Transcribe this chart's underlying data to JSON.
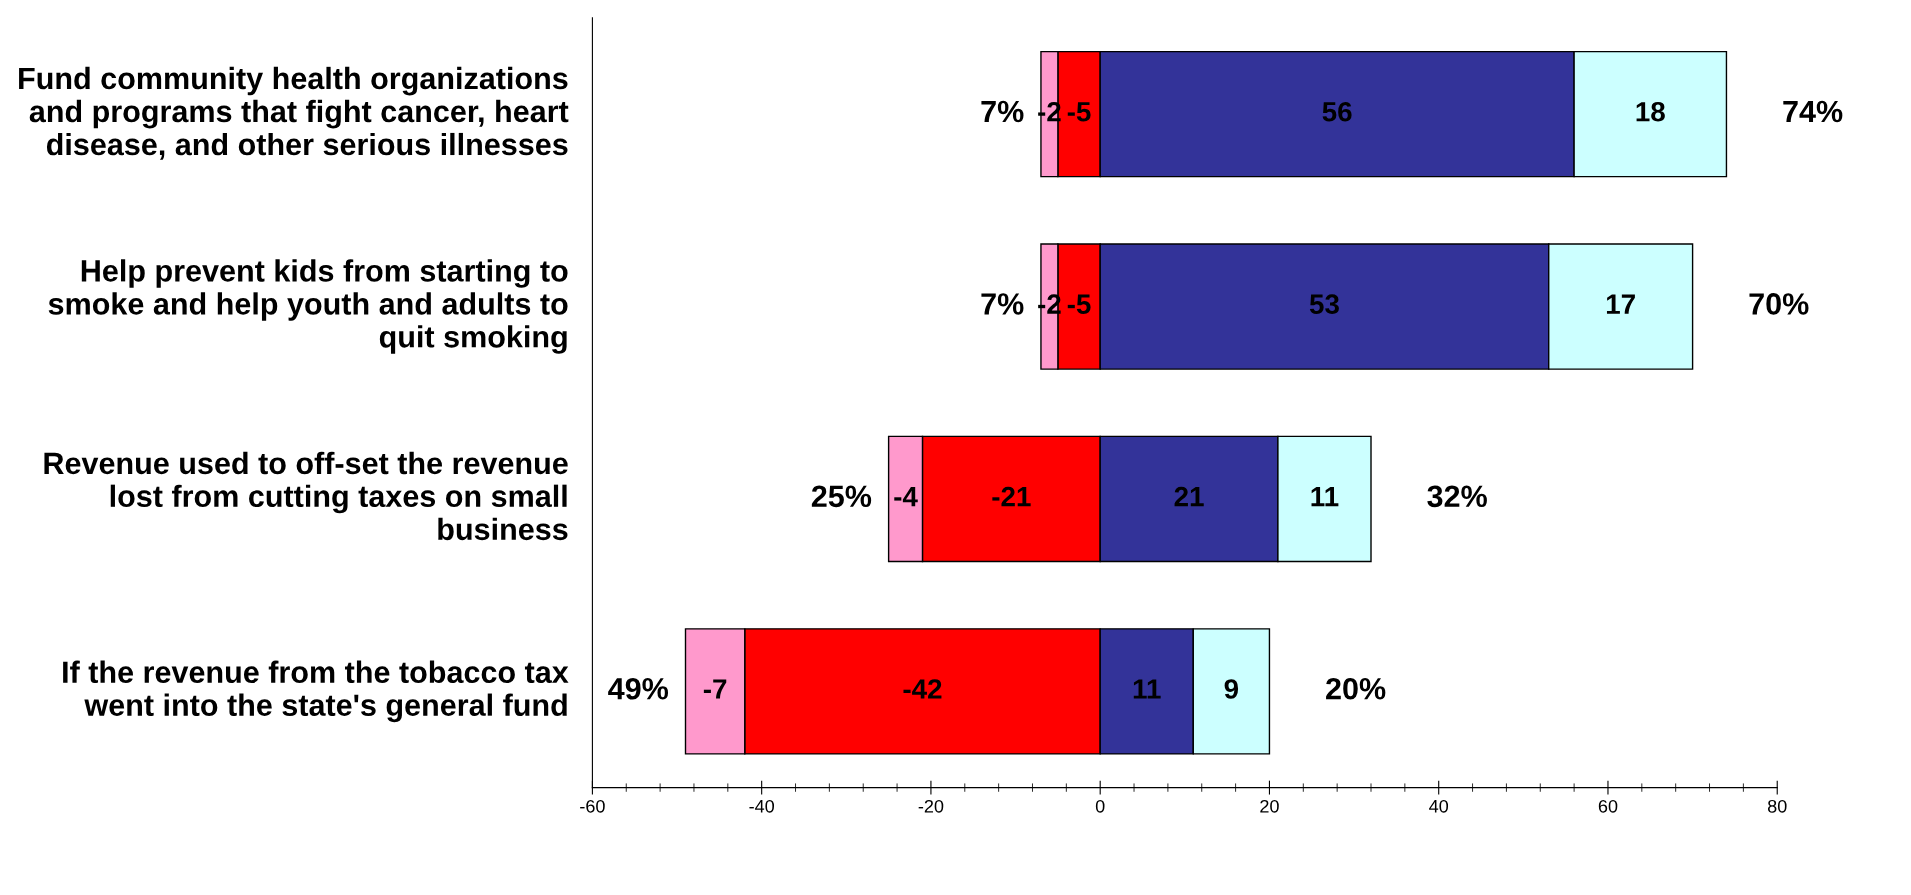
{
  "chart_data": {
    "type": "bar",
    "orientation": "horizontal",
    "stacked": true,
    "data_labels": true,
    "grid": false,
    "categories": [
      "Fund community health organizations and programs that fight cancer, heart disease, and other serious illnesses",
      "Help prevent kids from starting to smoke and help youth and adults to quit smoking",
      "Revenue used to off-set the revenue lost from cutting taxes on small business",
      "If the revenue from the tobacco tax went into the state's general fund"
    ],
    "series": [
      {
        "color": "#ff0000",
        "values": [
          -5,
          -5,
          -21,
          -42
        ]
      },
      {
        "color": "#ff99cc",
        "values": [
          -2,
          -2,
          -4,
          -7
        ]
      },
      {
        "color": "#333399",
        "values": [
          56,
          53,
          21,
          11
        ]
      },
      {
        "color": "#ccffff",
        "values": [
          18,
          17,
          11,
          9
        ]
      }
    ],
    "xlim": [
      -60,
      80
    ],
    "xticks": [
      -60,
      -40,
      -20,
      0,
      20,
      40,
      60,
      80
    ],
    "annotations": [
      "7%",
      "74%",
      "7%",
      "70%",
      "25%",
      "32%",
      "49%",
      "20%"
    ]
  }
}
